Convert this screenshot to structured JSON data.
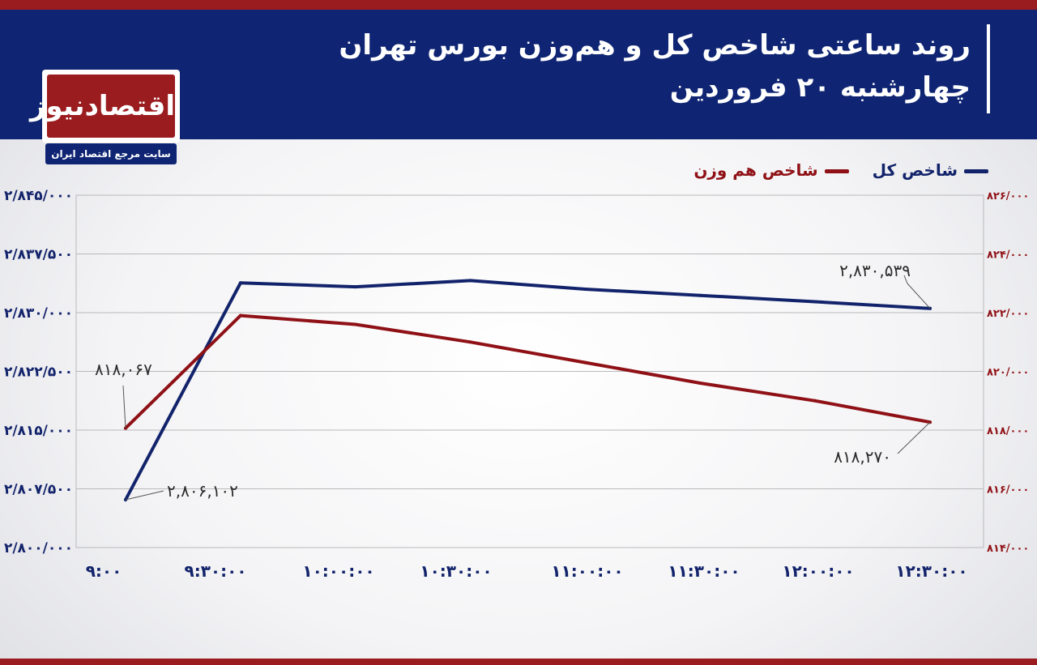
{
  "header": {
    "title_line1": "روند ساعتی شاخص کل و هم‌وزن بورس تهران",
    "title_line2": "چهارشنبه ۲۰ فروردین"
  },
  "logo": {
    "name": "اقتصادنیوز",
    "tagline": "سایت مرجع اقتصاد ایران"
  },
  "colors": {
    "header_bg": "#0f2573",
    "accent_red": "#9b1c1f",
    "series_blue": "#12236b",
    "series_red": "#8f1116"
  },
  "chart_data": {
    "type": "line",
    "categories": [
      "9:00",
      "9:30:00",
      "10:00:00",
      "10:30:00",
      "11:00:00",
      "11:30:00",
      "12:00:00",
      "12:30:00"
    ],
    "series": [
      {
        "name": "شاخص کل",
        "axis": "left",
        "values": [
          2806102,
          2833800,
          2833300,
          2834100,
          2833000,
          2832200,
          2831400,
          2830539
        ]
      },
      {
        "name": "شاخص هم وزن",
        "axis": "right",
        "values": [
          818067,
          821900,
          821600,
          821000,
          820300,
          819600,
          819000,
          818270
        ]
      }
    ],
    "left_axis": {
      "ylim": [
        2800000,
        2845000
      ],
      "ticks": [
        "۲/۸۰۰/۰۰۰",
        "۲/۸۰۷/۵۰۰",
        "۲/۸۱۵/۰۰۰",
        "۲/۸۲۲/۵۰۰",
        "۲/۸۳۰/۰۰۰",
        "۲/۸۳۷/۵۰۰",
        "۲/۸۴۵/۰۰۰"
      ]
    },
    "right_axis": {
      "ylim": [
        814000,
        826000
      ],
      "ticks": [
        "۸۱۴/۰۰۰",
        "۸۱۶/۰۰۰",
        "۸۱۸/۰۰۰",
        "۸۲۰/۰۰۰",
        "۸۲۲/۰۰۰",
        "۸۲۴/۰۰۰",
        "۸۲۶/۰۰۰"
      ]
    },
    "x_tick_labels": [
      "۹:۰۰",
      "۹:۳۰:۰۰",
      "۱۰:۰۰:۰۰",
      "۱۰:۳۰:۰۰",
      "۱۱:۰۰:۰۰",
      "۱۱:۳۰:۰۰",
      "۱۲:۰۰:۰۰",
      "۱۲:۳۰:۰۰"
    ],
    "annotations": [
      {
        "series": 0,
        "point": 0,
        "text": "۲,۸۰۶,۱۰۲"
      },
      {
        "series": 0,
        "point": 7,
        "text": "۲,۸۳۰,۵۳۹"
      },
      {
        "series": 1,
        "point": 0,
        "text": "۸۱۸,۰۶۷"
      },
      {
        "series": 1,
        "point": 7,
        "text": "۸۱۸,۲۷۰"
      }
    ],
    "grid": true,
    "legend": "top-right"
  }
}
